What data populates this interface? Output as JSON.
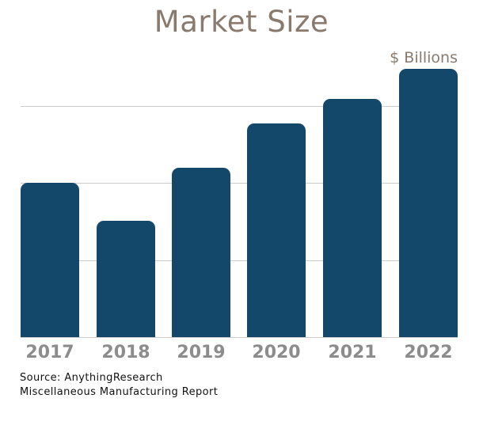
{
  "chart_data": {
    "type": "bar",
    "title": "Market Size",
    "unit_label": "$ Billions",
    "categories": [
      "2017",
      "2018",
      "2019",
      "2020",
      "2021",
      "2022"
    ],
    "values": [
      2.0,
      1.51,
      2.19,
      2.77,
      3.09,
      3.48
    ],
    "xlabel": "",
    "ylabel": "",
    "ylim": [
      0,
      4
    ],
    "gridline_values": [
      1,
      2,
      3
    ],
    "grid": true,
    "legend": false,
    "note": "y-axis has no numeric tick labels in the chart; values estimated in gridline units"
  },
  "footer": {
    "source_line1": "Source: AnythingResearch",
    "source_line2": "Miscellaneous Manufacturing Report"
  },
  "colors": {
    "bar": "#14486b",
    "title_text": "#8a7a6e",
    "unit_text": "#8a7a6e",
    "x_label_text": "#8c8c8c",
    "gridline": "#cccccc",
    "source_text": "#111111",
    "background": "#ffffff"
  }
}
